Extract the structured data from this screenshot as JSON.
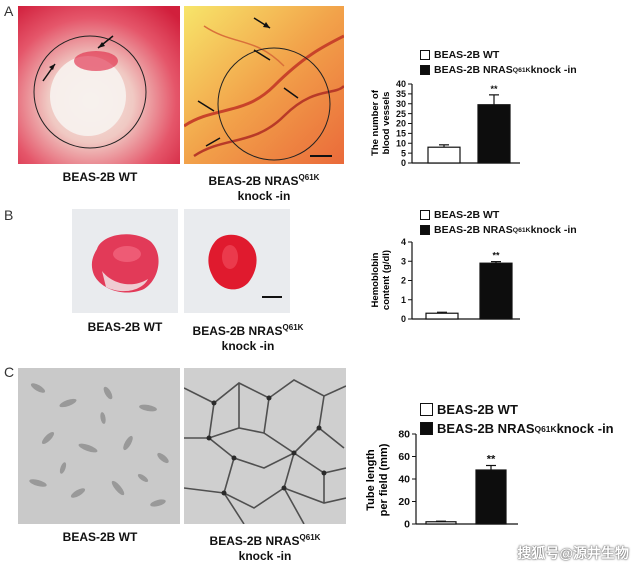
{
  "panels": [
    {
      "label": "A",
      "captions": {
        "wt": "BEAS-2B WT",
        "ki_line1_prefix": "BEAS-2B NRAS",
        "ki_line1_sup": "Q61K",
        "ki_line2": "knock -in"
      },
      "legend": {
        "wt": "BEAS-2B WT",
        "ki_prefix": "BEAS-2B NRAS",
        "ki_sup": "Q61K",
        "ki_suffix": " knock -in"
      },
      "chart": {
        "ylabel_line1": "The number of",
        "ylabel_line2": "blood vessels",
        "sig": "**"
      }
    },
    {
      "label": "B",
      "captions": {
        "wt": "BEAS-2B WT",
        "ki_line1_prefix": "BEAS-2B NRAS",
        "ki_line1_sup": "Q61K",
        "ki_line2": "knock -in"
      },
      "legend": {
        "wt": "BEAS-2B WT",
        "ki_prefix": "BEAS-2B NRAS",
        "ki_sup": "Q61K",
        "ki_suffix": " knock -in"
      },
      "chart": {
        "ylabel_line1": "Hemoblobin",
        "ylabel_line2": "content (g/dl)",
        "sig": "**"
      }
    },
    {
      "label": "C",
      "captions": {
        "wt": "BEAS-2B WT",
        "ki_line1_prefix": "BEAS-2B NRAS",
        "ki_line1_sup": "Q61K",
        "ki_line2": "knock -in"
      },
      "legend": {
        "wt": "BEAS-2B WT",
        "ki_prefix": "BEAS-2B NRAS",
        "ki_sup": "Q61K",
        "ki_suffix": " knock -in"
      },
      "chart": {
        "ylabel_line1": "Tube length",
        "ylabel_line2": "per field (mm)",
        "sig": "**"
      }
    }
  ],
  "watermark": "搜狐号@源井生物",
  "colors": {
    "bar_wt": "#ffffff",
    "bar_ki": "#0d0d0d",
    "axis": "#111111"
  },
  "chart_data": [
    {
      "type": "bar",
      "categories": [
        "BEAS-2B WT",
        "BEAS-2B NRAS Q61K knock -in"
      ],
      "values": [
        8,
        29.5
      ],
      "errors": [
        1.2,
        5
      ],
      "ylim": [
        0,
        40
      ],
      "yticks": [
        0,
        5,
        10,
        15,
        20,
        25,
        30,
        35,
        40
      ],
      "ylabel": "The number of blood vessels",
      "annotation": "**"
    },
    {
      "type": "bar",
      "categories": [
        "BEAS-2B WT",
        "BEAS-2B NRAS Q61K knock -in"
      ],
      "values": [
        0.3,
        2.9
      ],
      "errors": [
        0.05,
        0.08
      ],
      "ylim": [
        0,
        4
      ],
      "yticks": [
        0,
        1,
        2,
        3,
        4
      ],
      "ylabel": "Hemoblobin content (g/dl)",
      "annotation": "**"
    },
    {
      "type": "bar",
      "categories": [
        "BEAS-2B WT",
        "BEAS-2B NRAS Q61K knock -in"
      ],
      "values": [
        2,
        48
      ],
      "errors": [
        0.5,
        4
      ],
      "ylim": [
        0,
        80
      ],
      "yticks": [
        0,
        20,
        40,
        60,
        80
      ],
      "ylabel": "Tube length per field (mm)",
      "annotation": "**"
    }
  ]
}
